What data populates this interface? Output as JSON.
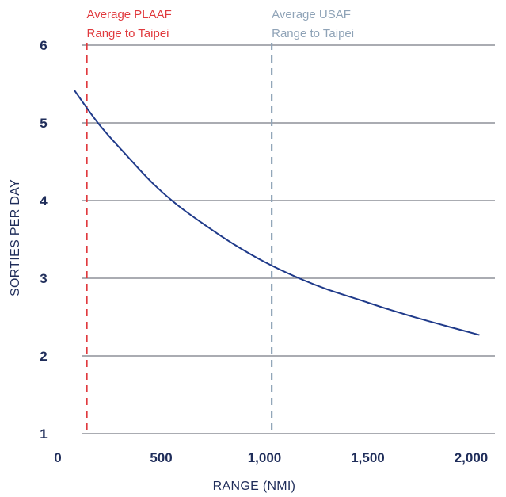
{
  "chart_data": {
    "type": "line",
    "title": "",
    "xlabel": "RANGE (NMI)",
    "ylabel": "SORTIES PER DAY",
    "xlim": [
      0,
      2150
    ],
    "ylim": [
      1,
      6
    ],
    "x_ticks": [
      {
        "value": 0,
        "label": "0"
      },
      {
        "value": 500,
        "label": "500"
      },
      {
        "value": 1000,
        "label": "1,000"
      },
      {
        "value": 1500,
        "label": "1,500"
      },
      {
        "value": 2000,
        "label": "2,000"
      }
    ],
    "y_ticks": [
      {
        "value": 1,
        "label": "1"
      },
      {
        "value": 2,
        "label": "2"
      },
      {
        "value": 3,
        "label": "3"
      },
      {
        "value": 4,
        "label": "4"
      },
      {
        "value": 5,
        "label": "5"
      },
      {
        "value": 6,
        "label": "6"
      }
    ],
    "grid": "horizontal",
    "series": [
      {
        "color": "#1f3a8a",
        "x": [
          80,
          200,
          340,
          460,
          580,
          720,
          850,
          1000,
          1150,
          1300,
          1450,
          1600,
          1750,
          1900,
          2040
        ],
        "y": [
          5.42,
          4.98,
          4.56,
          4.22,
          3.94,
          3.67,
          3.44,
          3.21,
          3.02,
          2.86,
          2.73,
          2.6,
          2.48,
          2.37,
          2.27
        ]
      }
    ],
    "annotations": [
      {
        "x": 140,
        "line1": "Average PLAAF",
        "line2": "Range to Taipei",
        "color": "#e03a3e"
      },
      {
        "x": 1035,
        "line1": "Average USAF",
        "line2": "Range to Taipei",
        "color": "#8fa3b7"
      }
    ]
  }
}
